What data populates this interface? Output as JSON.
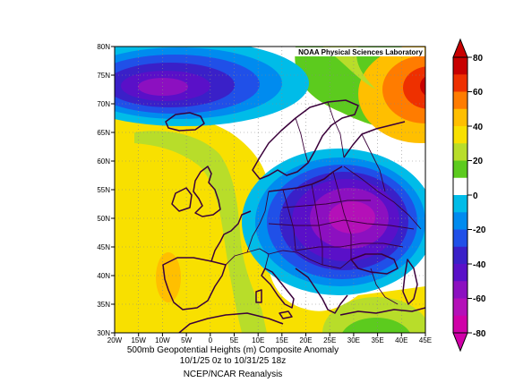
{
  "map": {
    "credit": "NOAA Physical Sciences Laboratory",
    "lat_labels": [
      "80N",
      "75N",
      "70N",
      "65N",
      "60N",
      "55N",
      "50N",
      "45N",
      "40N",
      "35N",
      "30N"
    ],
    "lon_labels": [
      "20W",
      "15W",
      "10W",
      "5W",
      "0",
      "5E",
      "10E",
      "15E",
      "20E",
      "25E",
      "30E",
      "35E",
      "40E",
      "45E"
    ],
    "extent": {
      "lon_min": -20,
      "lon_max": 45,
      "lat_min": 30,
      "lat_max": 80
    }
  },
  "colorbar": {
    "labels": [
      "80",
      "60",
      "40",
      "20",
      "0",
      "-20",
      "-40",
      "-60",
      "-80"
    ],
    "colors": [
      "#c80000",
      "#ee3000",
      "#ff7c00",
      "#ffbf00",
      "#f8e000",
      "#b8dd2a",
      "#5ccb1e",
      "#ffffff",
      "#00bce8",
      "#008bef",
      "#2050e8",
      "#3a20c8",
      "#5a10c8",
      "#8c10c0",
      "#b410b8",
      "#d000a8"
    ]
  },
  "caption": {
    "line1": "500mb Geopotential Heights (m)    Composite Anomaly",
    "line2": "10/1/25 0z  to 10/31/25 18z",
    "line3": "NCEP/NCAR Reanalysis"
  }
}
